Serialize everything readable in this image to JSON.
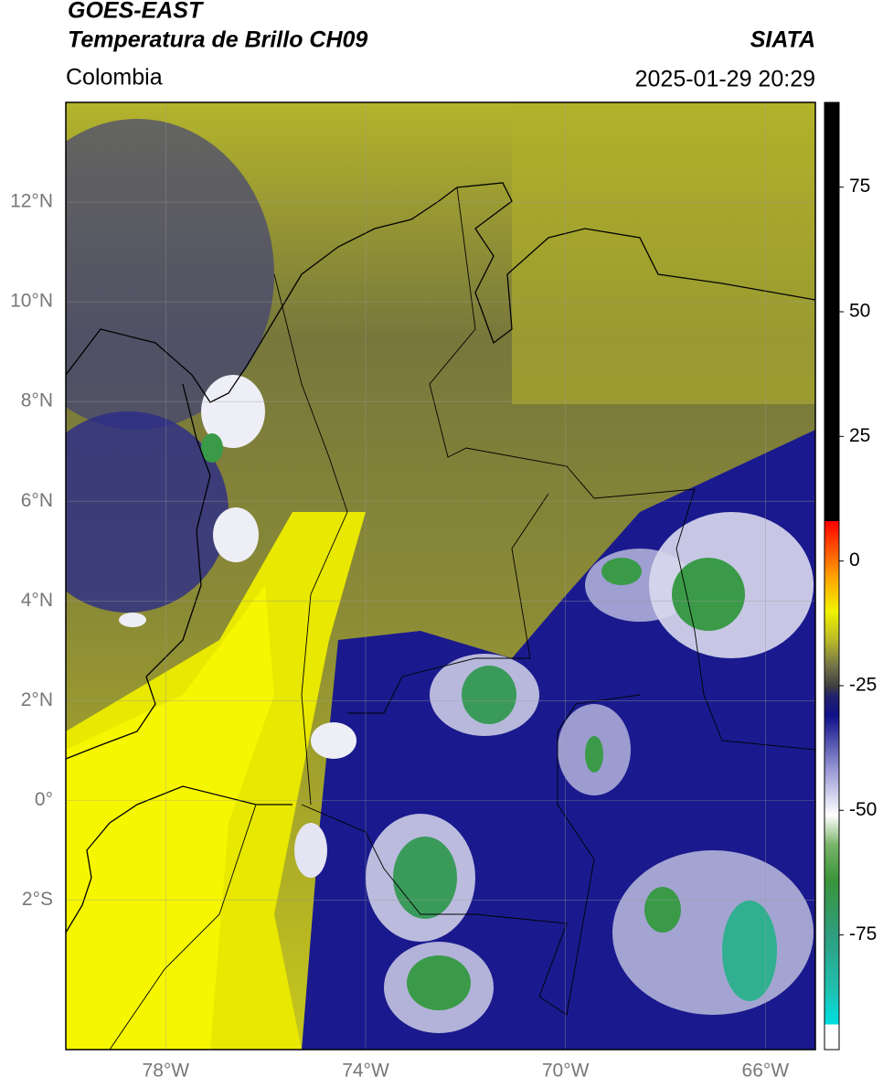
{
  "chart_data": {
    "type": "map",
    "title": "GOES-EAST",
    "subtitle": "Temperatura de Brillo CH09",
    "source": "SIATA",
    "region": "Colombia",
    "datetime": "2025-01-29 20:29",
    "xlim": [
      -80,
      -65
    ],
    "ylim": [
      -5,
      14
    ],
    "xticks": [
      {
        "value": -78,
        "label": "78°W"
      },
      {
        "value": -74,
        "label": "74°W"
      },
      {
        "value": -70,
        "label": "70°W"
      },
      {
        "value": -66,
        "label": "66°W"
      }
    ],
    "yticks": [
      {
        "value": 12,
        "label": "12°N"
      },
      {
        "value": 10,
        "label": "10°N"
      },
      {
        "value": 8,
        "label": "8°N"
      },
      {
        "value": 6,
        "label": "6°N"
      },
      {
        "value": 4,
        "label": "4°N"
      },
      {
        "value": 2,
        "label": "2°N"
      },
      {
        "value": 0,
        "label": "0°"
      },
      {
        "value": -2,
        "label": "2°S"
      }
    ],
    "grid": true,
    "colorbar": {
      "lim": [
        -98,
        92
      ],
      "ticks": [
        75,
        50,
        25,
        0,
        -25,
        -50,
        -75
      ],
      "stops": [
        {
          "value": -98,
          "color": "#ffffff"
        },
        {
          "value": -93,
          "color": "#ffffff"
        },
        {
          "value": -93,
          "color": "#00e0e0"
        },
        {
          "value": -86,
          "color": "#20c0b0"
        },
        {
          "value": -75,
          "color": "#2e9e7e"
        },
        {
          "value": -64,
          "color": "#3a943a"
        },
        {
          "value": -57,
          "color": "#78b468"
        },
        {
          "value": -51,
          "color": "#ffffff"
        },
        {
          "value": -42,
          "color": "#9a9ad6"
        },
        {
          "value": -31,
          "color": "#10108a"
        },
        {
          "value": -27,
          "color": "#22226a"
        },
        {
          "value": -25,
          "color": "#404040"
        },
        {
          "value": -21,
          "color": "#74744a"
        },
        {
          "value": -16,
          "color": "#b8b82a"
        },
        {
          "value": -10,
          "color": "#f2f200"
        },
        {
          "value": -3,
          "color": "#ffa000"
        },
        {
          "value": 3,
          "color": "#ff4a00"
        },
        {
          "value": 8,
          "color": "#ff0000"
        },
        {
          "value": 8,
          "color": "#000000"
        },
        {
          "value": 92,
          "color": "#000000"
        }
      ]
    }
  }
}
